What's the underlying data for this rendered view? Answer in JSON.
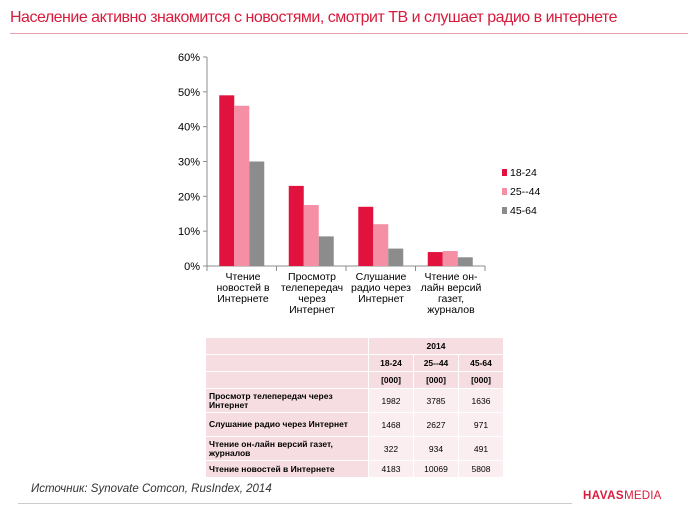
{
  "title": "Население активно знакомится с новостями, смотрит ТВ и слушает радио в интернете",
  "chart_data": {
    "type": "bar",
    "categories": [
      "Чтение новостей в Интернете",
      "Просмотр телепередач через Интернет",
      "Слушание радио через Интернет",
      "Чтение он-лайн версий газет, журналов"
    ],
    "series": [
      {
        "name": "18-24",
        "color": "#e2123e",
        "values": [
          49,
          23,
          17,
          4
        ]
      },
      {
        "name": "25--44",
        "color": "#f58fa5",
        "values": [
          46,
          17.5,
          12,
          4.3
        ]
      },
      {
        "name": "45-64",
        "color": "#8c8c8c",
        "values": [
          30,
          8.5,
          5,
          2.5
        ]
      }
    ],
    "yticks": [
      "0%",
      "10%",
      "20%",
      "30%",
      "40%",
      "50%",
      "60%"
    ],
    "ylim": [
      0,
      60
    ],
    "legend_position": "right",
    "title": "",
    "xlabel": "",
    "ylabel": ""
  },
  "table": {
    "year": "2014",
    "columns": [
      "18-24",
      "25--44",
      "45-64"
    ],
    "units": [
      "[000]",
      "[000]",
      "[000]"
    ],
    "rows": [
      {
        "label": "Просмотр  телепередач через Интернет",
        "values": [
          "1982",
          "3785",
          "1636"
        ]
      },
      {
        "label": "Слушание  радио через Интернет",
        "values": [
          "1468",
          "2627",
          "971"
        ]
      },
      {
        "label": "Чтение он-лайн версий газет, журналов",
        "values": [
          "322",
          "934",
          "491"
        ]
      },
      {
        "label": "Чтение новостей в Интернете",
        "values": [
          "4183",
          "10069",
          "5808"
        ]
      }
    ]
  },
  "footer": {
    "source": "Источник: Synovate Comcon, RusIndex, 2014",
    "logo_bold": "HAVAS",
    "logo_light": "MEDIA"
  }
}
